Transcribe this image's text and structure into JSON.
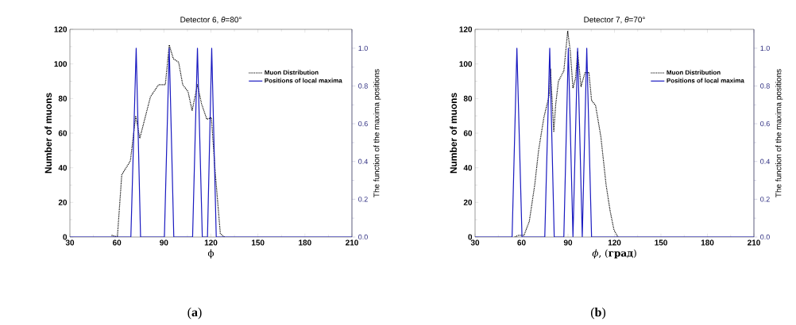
{
  "chart_data": [
    {
      "type": "line",
      "title": "Detector 6, *θ*=80°",
      "xlabel": "ϕ",
      "ylabel": "Number of muons",
      "y2label": "The function of the maxima positions",
      "legend": "top right",
      "annotations": [
        "(**a**)"
      ],
      "xlim": [
        30,
        210
      ],
      "xticks": [
        30,
        60,
        90,
        120,
        150,
        180,
        210
      ],
      "ylim": [
        0,
        120
      ],
      "yticks": [
        0,
        20,
        40,
        60,
        80,
        100,
        120
      ],
      "y2lim": [
        0,
        1.1
      ],
      "y2ticks": [
        {
          "value": 0,
          "label": "0.0"
        },
        {
          "value": 0.2,
          "label": "0.2"
        },
        {
          "value": 0.4,
          "label": "0.4"
        },
        {
          "value": 0.6,
          "label": "0.6"
        },
        {
          "value": 0.8,
          "label": "0.8"
        },
        {
          "value": 1,
          "label": "1.0"
        }
      ],
      "series": [
        {
          "name": "Muon Distribution",
          "color": "#000000",
          "line_style": "dotted",
          "x": [
            56.6,
            60.3,
            63.1,
            68.6,
            72,
            74.6,
            81.4,
            86.6,
            90.9,
            93.4,
            96,
            99.4,
            102,
            105.4,
            108,
            111.4,
            114,
            117.4,
            120.3,
            122.6,
            126,
            128.6
          ],
          "values": [
            1,
            0,
            36,
            44,
            70,
            57,
            81,
            88,
            88,
            111,
            103,
            101,
            88,
            84,
            73,
            88,
            77,
            68,
            69,
            39,
            2,
            0
          ]
        },
        {
          "name": "Positions of local maxima",
          "color": "#1a1ac0",
          "line_style": "solid",
          "axis": "y2",
          "x": [
            30,
            68.9,
            72.3,
            75.1,
            90.3,
            93.4,
            96.3,
            108.3,
            111.4,
            114.5,
            117.8,
            120.5,
            123.4,
            210
          ],
          "values": [
            0,
            0,
            1,
            0,
            0,
            1,
            0,
            0,
            1,
            0,
            0,
            1,
            0,
            0
          ]
        }
      ]
    },
    {
      "type": "line",
      "title": "Detector 7, *θ*=70°",
      "xlabel": "*ϕ*, (**град**)",
      "ylabel": "Number of muons",
      "y2label": "The function of the maxima positions",
      "legend": "top right",
      "annotations": [
        "(**b**)"
      ],
      "xlim": [
        30,
        210
      ],
      "xticks": [
        30,
        60,
        90,
        120,
        150,
        180,
        210
      ],
      "ylim": [
        0,
        120
      ],
      "yticks": [
        0,
        20,
        40,
        60,
        80,
        100,
        120
      ],
      "y2lim": [
        0,
        1.1
      ],
      "y2ticks": [
        {
          "value": 0,
          "label": "0.0"
        },
        {
          "value": 0.2,
          "label": "0.2"
        },
        {
          "value": 0.4,
          "label": "0.4"
        },
        {
          "value": 0.6,
          "label": "0.6"
        },
        {
          "value": 0.8,
          "label": "0.8"
        },
        {
          "value": 1,
          "label": "1.0"
        }
      ],
      "series": [
        {
          "name": "Muon Distribution",
          "color": "#000000",
          "line_style": "dotted",
          "x": [
            55.6,
            58.2,
            61.6,
            65,
            68.5,
            71,
            74.4,
            77.9,
            78.7,
            80.8,
            82.1,
            83.8,
            87.3,
            89.8,
            91.5,
            93.2,
            94.9,
            96.2,
            98.4,
            101,
            103.5,
            105.2,
            107.8,
            111.2,
            114.6,
            117.2,
            119.7,
            122.3
          ],
          "values": [
            0,
            1,
            1,
            9,
            30,
            50,
            69,
            82,
            97,
            61,
            77,
            90,
            96,
            119,
            107,
            86,
            92,
            107,
            87,
            95,
            95,
            79,
            76,
            58,
            30,
            15,
            4,
            0
          ]
        },
        {
          "name": "Positions of local maxima",
          "color": "#1a1ac0",
          "line_style": "solid",
          "axis": "y2",
          "x": [
            30,
            53.9,
            57,
            60.3,
            75,
            78.2,
            81.1,
            87.3,
            90.2,
            93.2,
            96.2,
            99.2,
            102.1,
            105.2,
            210
          ],
          "values": [
            0,
            0,
            1,
            0,
            0,
            1,
            0,
            0,
            1,
            0,
            1,
            0,
            1,
            0,
            0
          ]
        }
      ]
    }
  ]
}
